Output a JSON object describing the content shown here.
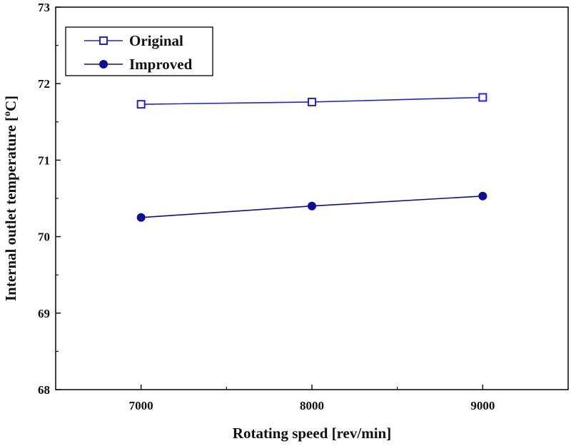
{
  "chart_data": {
    "type": "line",
    "title": "",
    "xlabel": "Rotating speed [rev/min]",
    "ylabel": {
      "prefix": "Internal outlet temperature [",
      "superscript": "o",
      "suffix": "C]"
    },
    "xlim": [
      6500,
      9500
    ],
    "ylim": [
      68,
      73
    ],
    "xticks": [
      7000,
      8000,
      9000
    ],
    "xtick_labels": [
      "7000",
      "8000",
      "9000"
    ],
    "yticks": [
      68,
      69,
      70,
      71,
      72,
      73
    ],
    "ytick_labels": [
      "68",
      "69",
      "70",
      "71",
      "72",
      "73"
    ],
    "grid": false,
    "legend_position": "top-left",
    "series": [
      {
        "name": "Original",
        "marker": "open-square",
        "color": "#2222dd",
        "x": [
          7000,
          8000,
          9000
        ],
        "values": [
          71.73,
          71.76,
          71.82
        ]
      },
      {
        "name": "Improved",
        "marker": "filled-circle",
        "color": "#0d0d99",
        "x": [
          7000,
          8000,
          9000
        ],
        "values": [
          70.25,
          70.4,
          70.53
        ]
      }
    ]
  }
}
